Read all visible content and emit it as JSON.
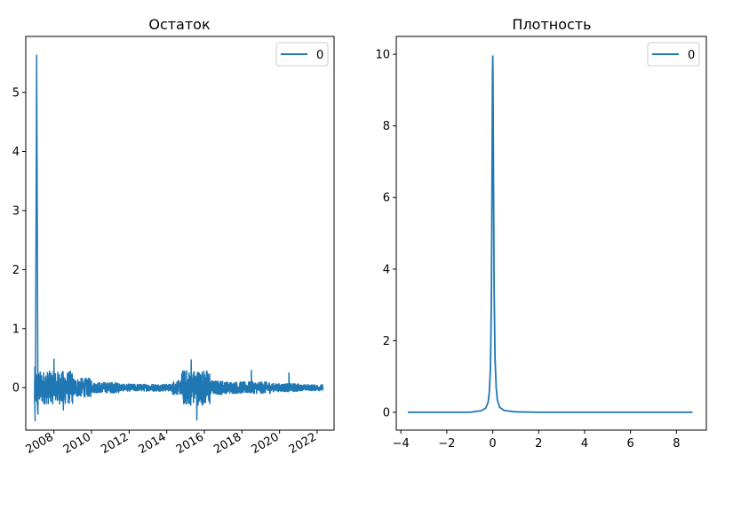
{
  "colors": {
    "series": "#1f77b4",
    "axes": "#000000",
    "legend_border": "#cccccc"
  },
  "chart_data": [
    {
      "type": "line",
      "title": "Остаток",
      "xlabel": "",
      "ylabel": "",
      "legend": {
        "entries": [
          "0"
        ],
        "placement": "top-right"
      },
      "grid": false,
      "xlim": [
        2006.5,
        2022.9
      ],
      "ylim": [
        -0.72,
        5.95
      ],
      "xticks": [
        2008,
        2010,
        2012,
        2014,
        2016,
        2018,
        2020,
        2022
      ],
      "xticklabels": [
        "2008",
        "2010",
        "2012",
        "2014",
        "2016",
        "2018",
        "2020",
        "2022"
      ],
      "yticks": [
        0,
        1,
        2,
        3,
        4,
        5
      ],
      "yticklabels": [
        "0",
        "1",
        "2",
        "3",
        "4",
        "5"
      ],
      "series": [
        {
          "name": "0",
          "description_points": [
            {
              "x": 2007.0,
              "y": -0.57
            },
            {
              "x": 2007.08,
              "y": 5.63
            },
            {
              "x": 2007.15,
              "y": -0.45
            },
            {
              "x": 2008.0,
              "y": 0.48
            },
            {
              "x": 2008.5,
              "y": -0.38
            },
            {
              "x": 2015.3,
              "y": 0.47
            },
            {
              "x": 2015.6,
              "y": -0.55
            },
            {
              "x": 2018.5,
              "y": 0.29
            },
            {
              "x": 2020.5,
              "y": 0.25
            },
            {
              "x": 2022.3,
              "y": -0.05
            }
          ]
        }
      ]
    },
    {
      "type": "line",
      "title": "Плотность",
      "xlabel": "",
      "ylabel": "",
      "legend": {
        "entries": [
          "0"
        ],
        "placement": "top-right"
      },
      "grid": false,
      "xlim": [
        -4.2,
        9.3
      ],
      "ylim": [
        -0.5,
        10.5
      ],
      "xticks": [
        -4,
        -2,
        0,
        2,
        4,
        6,
        8
      ],
      "xticklabels": [
        "−4",
        "−2",
        "0",
        "2",
        "4",
        "6",
        "8"
      ],
      "yticks": [
        0,
        2,
        4,
        6,
        8,
        10
      ],
      "yticklabels": [
        "0",
        "2",
        "4",
        "6",
        "8",
        "10"
      ],
      "series": [
        {
          "name": "0",
          "x": [
            -3.7,
            -2.0,
            -1.0,
            -0.5,
            -0.3,
            -0.2,
            -0.15,
            -0.1,
            -0.06,
            -0.03,
            -0.01,
            0.0,
            0.01,
            0.03,
            0.06,
            0.1,
            0.15,
            0.2,
            0.3,
            0.5,
            1.0,
            2.0,
            5.0,
            8.7
          ],
          "y": [
            0.0,
            0.0,
            0.0,
            0.04,
            0.12,
            0.28,
            0.55,
            1.2,
            3.0,
            6.5,
            9.4,
            9.95,
            9.5,
            7.0,
            3.5,
            1.5,
            0.7,
            0.35,
            0.14,
            0.05,
            0.01,
            0.0,
            0.0,
            0.0
          ]
        }
      ]
    }
  ]
}
